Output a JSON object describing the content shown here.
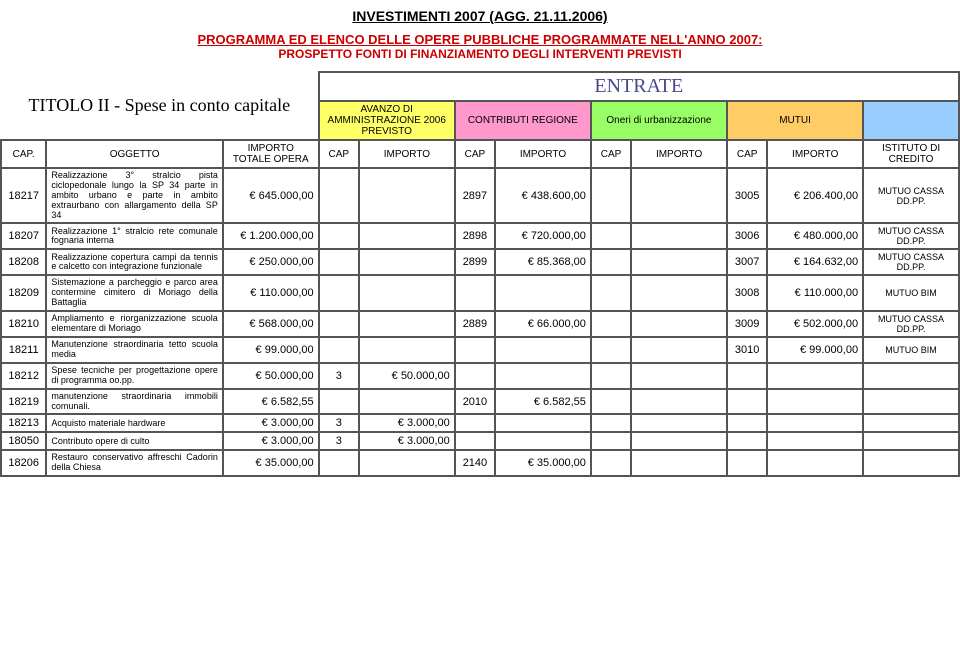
{
  "header": {
    "title": "INVESTIMENTI 2007   (AGG. 21.11.2006)",
    "subtitle1": "PROGRAMMA ED ELENCO DELLE OPERE PUBBLICHE PROGRAMMATE NELL'ANNO 2007:",
    "subtitle2": "PROSPETTO FONTI DI FINANZIAMENTO DEGLI INTERVENTI PREVISTI",
    "section_title": "TITOLO II - Spese in conto capitale",
    "entrate": "ENTRATE"
  },
  "col_headers": {
    "avanzo": "AVANZO DI AMMINISTRAZIONE 2006 PREVISTO",
    "contributi": "CONTRIBUTI REGIONE",
    "oneri": "Oneri di urbanizzazione",
    "mutui": "MUTUI",
    "cap": "CAP.",
    "oggetto": "OGGETTO",
    "importo_totale": "IMPORTO TOTALE OPERA",
    "cap_col": "CAP",
    "importo_col": "IMPORTO",
    "istituto": "ISTITUTO DI CREDITO"
  },
  "rows": [
    {
      "cap": "18217",
      "desc": "Realizzazione 3° stralcio pista ciclopedonale lungo la SP 34 parte in ambito urbano e parte in ambito extraurbano con allargamento della SP 34",
      "tot": "€ 645.000,00",
      "av_cap": "",
      "av_imp": "",
      "cr_cap": "2897",
      "cr_imp": "€ 438.600,00",
      "on_cap": "",
      "on_imp": "",
      "mu_cap": "3005",
      "mu_imp": "€ 206.400,00",
      "ist": "MUTUO CASSA DD.PP."
    },
    {
      "cap": "18207",
      "desc": "Realizzazione 1° stralcio rete comunale fognaria interna",
      "tot": "€ 1.200.000,00",
      "av_cap": "",
      "av_imp": "",
      "cr_cap": "2898",
      "cr_imp": "€ 720.000,00",
      "on_cap": "",
      "on_imp": "",
      "mu_cap": "3006",
      "mu_imp": "€ 480.000,00",
      "ist": "MUTUO CASSA DD.PP."
    },
    {
      "cap": "18208",
      "desc": "Realizzazione copertura campi da tennis e calcetto con integrazione funzionale",
      "tot": "€ 250.000,00",
      "av_cap": "",
      "av_imp": "",
      "cr_cap": "2899",
      "cr_imp": "€ 85.368,00",
      "on_cap": "",
      "on_imp": "",
      "mu_cap": "3007",
      "mu_imp": "€ 164.632,00",
      "ist": "MUTUO CASSA DD.PP."
    },
    {
      "cap": "18209",
      "desc": "Sistemazione a parcheggio e parco area contermine cimitero di Moriago della Battaglia",
      "tot": "€ 110.000,00",
      "av_cap": "",
      "av_imp": "",
      "cr_cap": "",
      "cr_imp": "",
      "on_cap": "",
      "on_imp": "",
      "mu_cap": "3008",
      "mu_imp": "€ 110.000,00",
      "ist": "MUTUO BIM"
    },
    {
      "cap": "18210",
      "desc": "Ampliamento e riorganizzazione scuola elementare di Moriago",
      "tot": "€ 568.000,00",
      "av_cap": "",
      "av_imp": "",
      "cr_cap": "2889",
      "cr_imp": "€ 66.000,00",
      "on_cap": "",
      "on_imp": "",
      "mu_cap": "3009",
      "mu_imp": "€ 502.000,00",
      "ist": "MUTUO CASSA DD.PP."
    },
    {
      "cap": "18211",
      "desc": "Manutenzione straordinaria tetto scuola media",
      "tot": "€ 99.000,00",
      "av_cap": "",
      "av_imp": "",
      "cr_cap": "",
      "cr_imp": "",
      "on_cap": "",
      "on_imp": "",
      "mu_cap": "3010",
      "mu_imp": "€ 99.000,00",
      "ist": "MUTUO BIM"
    },
    {
      "cap": "18212",
      "desc": "Spese tecniche per progettazione opere di programma oo.pp.",
      "tot": "€ 50.000,00",
      "av_cap": "3",
      "av_imp": "€ 50.000,00",
      "cr_cap": "",
      "cr_imp": "",
      "on_cap": "",
      "on_imp": "",
      "mu_cap": "",
      "mu_imp": "",
      "ist": ""
    },
    {
      "cap": "18219",
      "desc": "manutenzione straordinaria immobili comunali.",
      "tot": "€ 6.582,55",
      "av_cap": "",
      "av_imp": "",
      "cr_cap": "2010",
      "cr_imp": "€ 6.582,55",
      "on_cap": "",
      "on_imp": "",
      "mu_cap": "",
      "mu_imp": "",
      "ist": ""
    },
    {
      "cap": "18213",
      "desc": "Acquisto materiale hardware",
      "tot": "€ 3.000,00",
      "av_cap": "3",
      "av_imp": "€ 3.000,00",
      "cr_cap": "",
      "cr_imp": "",
      "on_cap": "",
      "on_imp": "",
      "mu_cap": "",
      "mu_imp": "",
      "ist": ""
    },
    {
      "cap": "18050",
      "desc": "Contributo opere di culto",
      "tot": "€ 3.000,00",
      "av_cap": "3",
      "av_imp": "€ 3.000,00",
      "cr_cap": "",
      "cr_imp": "",
      "on_cap": "",
      "on_imp": "",
      "mu_cap": "",
      "mu_imp": "",
      "ist": ""
    },
    {
      "cap": "18206",
      "desc": "Restauro conservativo affreschi Cadorin della Chiesa",
      "tot": "€ 35.000,00",
      "av_cap": "",
      "av_imp": "",
      "cr_cap": "2140",
      "cr_imp": "€ 35.000,00",
      "on_cap": "",
      "on_imp": "",
      "mu_cap": "",
      "mu_imp": "",
      "ist": ""
    }
  ]
}
